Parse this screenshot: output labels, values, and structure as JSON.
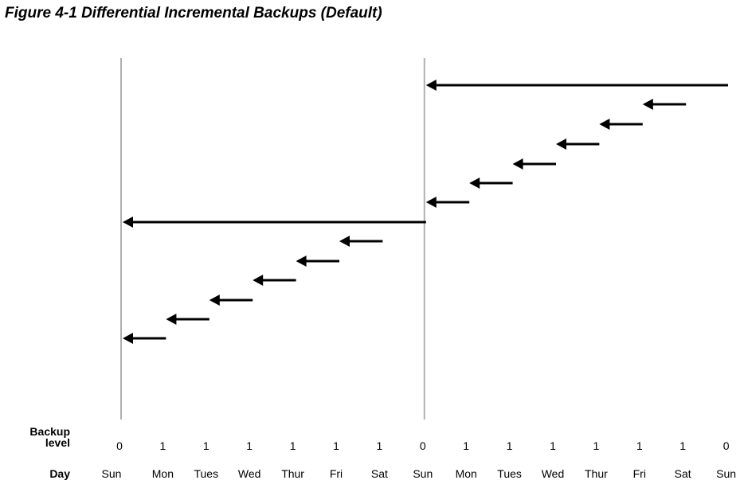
{
  "figure_title": "Figure 4-1 Differential Incremental Backups (Default)",
  "row_labels": {
    "backup_level_line1": "Backup",
    "backup_level_line2": "level",
    "day": "Day"
  },
  "columns": [
    {
      "day": "Sun",
      "level": "0"
    },
    {
      "day": "Mon",
      "level": "1"
    },
    {
      "day": "Tues",
      "level": "1"
    },
    {
      "day": "Wed",
      "level": "1"
    },
    {
      "day": "Thur",
      "level": "1"
    },
    {
      "day": "Fri",
      "level": "1"
    },
    {
      "day": "Sat",
      "level": "1"
    },
    {
      "day": "Sun",
      "level": "0"
    },
    {
      "day": "Mon",
      "level": "1"
    },
    {
      "day": "Tues",
      "level": "1"
    },
    {
      "day": "Wed",
      "level": "1"
    },
    {
      "day": "Thur",
      "level": "1"
    },
    {
      "day": "Fri",
      "level": "1"
    },
    {
      "day": "Sat",
      "level": "1"
    },
    {
      "day": "Sun",
      "level": "0"
    }
  ],
  "backup_arrows": [
    {
      "from_column": 1,
      "to_column": 0
    },
    {
      "from_column": 2,
      "to_column": 1
    },
    {
      "from_column": 3,
      "to_column": 2
    },
    {
      "from_column": 4,
      "to_column": 3
    },
    {
      "from_column": 5,
      "to_column": 4
    },
    {
      "from_column": 6,
      "to_column": 5
    },
    {
      "from_column": 7,
      "to_column": 0
    },
    {
      "from_column": 8,
      "to_column": 7
    },
    {
      "from_column": 9,
      "to_column": 8
    },
    {
      "from_column": 10,
      "to_column": 9
    },
    {
      "from_column": 11,
      "to_column": 10
    },
    {
      "from_column": 12,
      "to_column": 11
    },
    {
      "from_column": 13,
      "to_column": 12
    },
    {
      "from_column": 14,
      "to_column": 7
    }
  ],
  "full_backup_columns": [
    0,
    7
  ],
  "colors": {
    "arrow": "#000000",
    "divider": "#b0b0b0",
    "text": "#000000"
  }
}
